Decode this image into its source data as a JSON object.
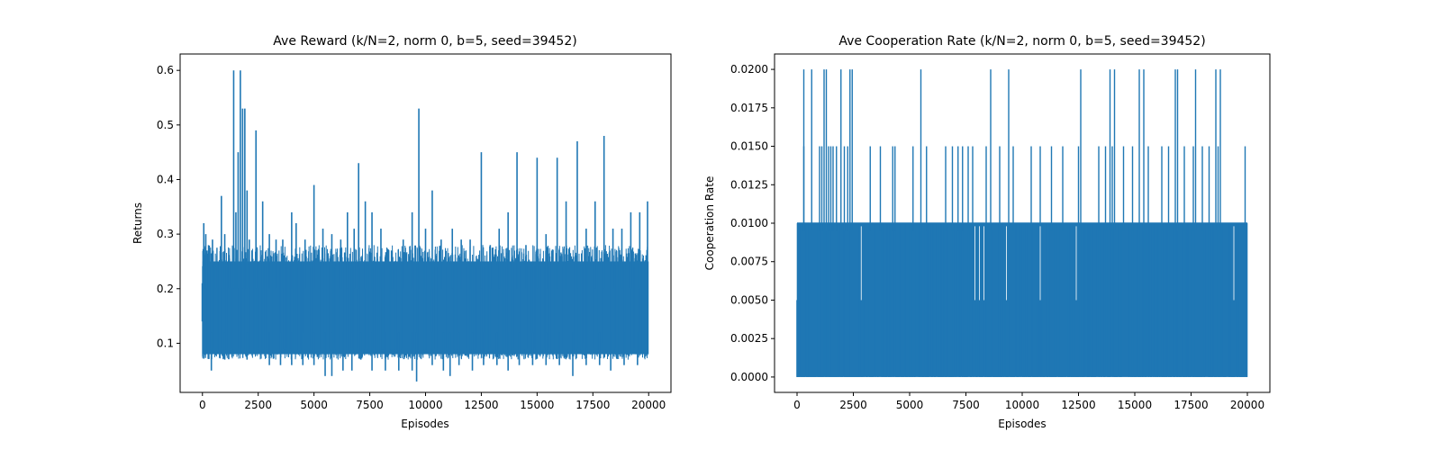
{
  "chart_data": [
    {
      "type": "line",
      "title": "Ave Reward (k/N=2, norm 0, b=5, seed=39452)",
      "xlabel": "Episodes",
      "ylabel": "Returns",
      "xlim": [
        -1000,
        21000
      ],
      "ylim": [
        0.01,
        0.63
      ],
      "xticks": [
        "0",
        "2500",
        "5000",
        "7500",
        "10000",
        "12500",
        "15000",
        "17500",
        "20000"
      ],
      "yticks": [
        "0.1",
        "0.2",
        "0.3",
        "0.4",
        "0.5",
        "0.6"
      ],
      "grid": false,
      "color": "#1f77b4",
      "series": [
        {
          "band_min": 0.08,
          "band_max": 0.25,
          "spikes": [
            [
              60,
              0.32
            ],
            [
              150,
              0.3
            ],
            [
              200,
              0.27
            ],
            [
              450,
              0.29
            ],
            [
              600,
              0.24
            ],
            [
              850,
              0.37
            ],
            [
              1000,
              0.3
            ],
            [
              1200,
              0.26
            ],
            [
              1400,
              0.6
            ],
            [
              1500,
              0.34
            ],
            [
              1600,
              0.45
            ],
            [
              1700,
              0.6
            ],
            [
              1800,
              0.53
            ],
            [
              1900,
              0.53
            ],
            [
              2000,
              0.38
            ],
            [
              2100,
              0.29
            ],
            [
              2400,
              0.49
            ],
            [
              2700,
              0.36
            ],
            [
              3000,
              0.3
            ],
            [
              3300,
              0.29
            ],
            [
              3600,
              0.29
            ],
            [
              4000,
              0.34
            ],
            [
              4200,
              0.32
            ],
            [
              4600,
              0.29
            ],
            [
              5000,
              0.39
            ],
            [
              5400,
              0.31
            ],
            [
              5800,
              0.3
            ],
            [
              6200,
              0.29
            ],
            [
              6500,
              0.34
            ],
            [
              6800,
              0.31
            ],
            [
              7000,
              0.43
            ],
            [
              7300,
              0.36
            ],
            [
              7600,
              0.34
            ],
            [
              8000,
              0.31
            ],
            [
              8500,
              0.27
            ],
            [
              9000,
              0.29
            ],
            [
              9400,
              0.34
            ],
            [
              9700,
              0.53
            ],
            [
              10000,
              0.31
            ],
            [
              10300,
              0.38
            ],
            [
              10700,
              0.29
            ],
            [
              11200,
              0.31
            ],
            [
              11600,
              0.29
            ],
            [
              12000,
              0.29
            ],
            [
              12500,
              0.45
            ],
            [
              12900,
              0.28
            ],
            [
              13300,
              0.31
            ],
            [
              13700,
              0.34
            ],
            [
              14100,
              0.45
            ],
            [
              14500,
              0.28
            ],
            [
              15000,
              0.44
            ],
            [
              15400,
              0.3
            ],
            [
              15900,
              0.44
            ],
            [
              16300,
              0.36
            ],
            [
              16800,
              0.47
            ],
            [
              17200,
              0.31
            ],
            [
              17600,
              0.36
            ],
            [
              18000,
              0.48
            ],
            [
              18400,
              0.31
            ],
            [
              18800,
              0.31
            ],
            [
              19200,
              0.34
            ],
            [
              19600,
              0.34
            ],
            [
              19950,
              0.36
            ]
          ],
          "dips": [
            [
              400,
              0.05
            ],
            [
              1000,
              0.07
            ],
            [
              2000,
              0.07
            ],
            [
              3000,
              0.06
            ],
            [
              3500,
              0.06
            ],
            [
              4000,
              0.06
            ],
            [
              4500,
              0.06
            ],
            [
              5000,
              0.06
            ],
            [
              5500,
              0.04
            ],
            [
              5800,
              0.04
            ],
            [
              6300,
              0.05
            ],
            [
              6700,
              0.05
            ],
            [
              7100,
              0.07
            ],
            [
              7600,
              0.05
            ],
            [
              8200,
              0.05
            ],
            [
              8800,
              0.05
            ],
            [
              9400,
              0.05
            ],
            [
              9600,
              0.03
            ],
            [
              10300,
              0.06
            ],
            [
              10800,
              0.05
            ],
            [
              11100,
              0.04
            ],
            [
              11500,
              0.06
            ],
            [
              12100,
              0.05
            ],
            [
              12600,
              0.06
            ],
            [
              13200,
              0.06
            ],
            [
              13700,
              0.05
            ],
            [
              14200,
              0.06
            ],
            [
              14800,
              0.06
            ],
            [
              15400,
              0.06
            ],
            [
              16000,
              0.06
            ],
            [
              16600,
              0.04
            ],
            [
              17200,
              0.06
            ],
            [
              17800,
              0.06
            ],
            [
              18300,
              0.05
            ],
            [
              18900,
              0.06
            ],
            [
              19500,
              0.06
            ]
          ]
        }
      ]
    },
    {
      "type": "line",
      "title": "Ave Cooperation Rate (k/N=2, norm 0, b=5, seed=39452)",
      "xlabel": "Episodes",
      "ylabel": "Cooperation Rate",
      "xlim": [
        -1000,
        21000
      ],
      "ylim": [
        -0.001,
        0.021
      ],
      "xticks": [
        "0",
        "2500",
        "5000",
        "7500",
        "10000",
        "12500",
        "15000",
        "17500",
        "20000"
      ],
      "yticks": [
        "0.0000",
        "0.0025",
        "0.0050",
        "0.0075",
        "0.0100",
        "0.0125",
        "0.0150",
        "0.0175",
        "0.0200"
      ],
      "grid": false,
      "color": "#1f77b4",
      "series": [
        {
          "band_min": 0.0,
          "band_max": 0.01,
          "spikes_020": [
            300,
            650,
            1200,
            1300,
            1950,
            2350,
            2450,
            5500,
            8600,
            9400,
            12600,
            13900,
            14100,
            15200,
            15400,
            16800,
            16900,
            17700,
            18600,
            18800
          ],
          "spikes_015": [
            300,
            1000,
            1100,
            1400,
            1500,
            1600,
            1750,
            2100,
            2250,
            3250,
            3700,
            4250,
            4350,
            5150,
            5750,
            6600,
            6900,
            7150,
            7350,
            7600,
            7800,
            8400,
            9000,
            9600,
            10400,
            10800,
            11300,
            11800,
            12500,
            13400,
            13700,
            14000,
            14500,
            14900,
            15600,
            16200,
            16500,
            17200,
            17600,
            18000,
            18300,
            18700,
            19900
          ],
          "gaps": [
            2850,
            7900,
            8100,
            8300,
            9300,
            10800,
            12400,
            19400
          ]
        }
      ]
    }
  ]
}
